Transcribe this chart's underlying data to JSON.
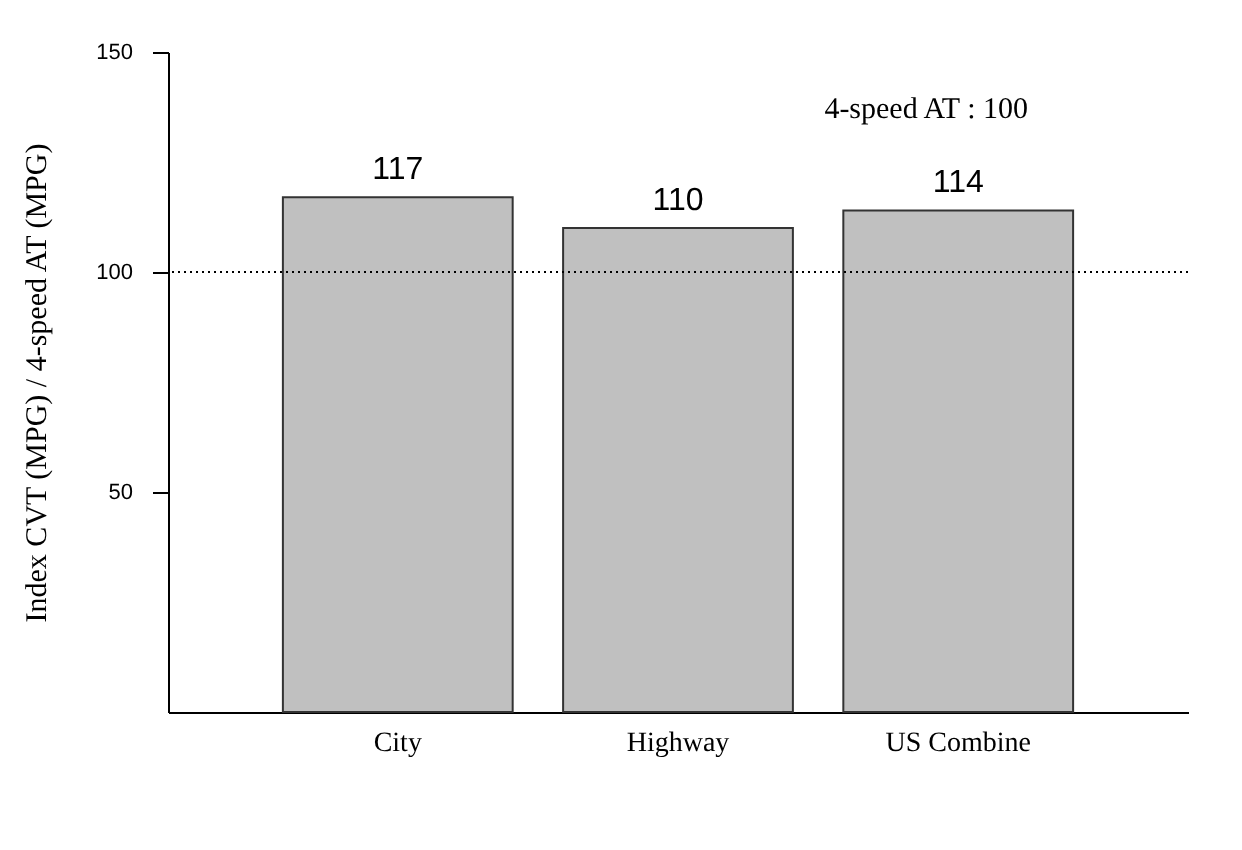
{
  "chart_data": {
    "type": "bar",
    "ylabel": "Index CVT (MPG) / 4-speed AT (MPG)",
    "categories": [
      "City",
      "Highway",
      "US Combine"
    ],
    "values": [
      117,
      110,
      114
    ],
    "color": "#c0c0c0",
    "ylim": [
      0,
      150
    ],
    "yticks": [
      50,
      100,
      150
    ],
    "grid": false,
    "data_labels": true,
    "ref_lines": [
      {
        "axis": "y",
        "value": 100,
        "color": "#000000",
        "line_style": "dotted"
      }
    ],
    "annotations": [
      "4-speed AT : 100"
    ]
  }
}
